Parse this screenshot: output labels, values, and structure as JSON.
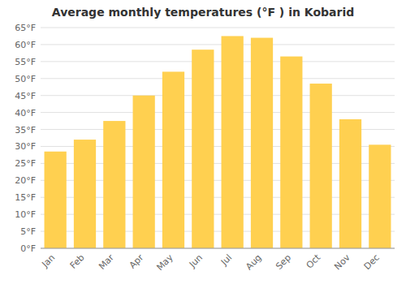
{
  "chart_data": {
    "type": "bar",
    "title": "Average monthly temperatures (°F ) in Kobarid",
    "categories": [
      "Jan",
      "Feb",
      "Mar",
      "Apr",
      "May",
      "Jun",
      "Jul",
      "Aug",
      "Sep",
      "Oct",
      "Nov",
      "Dec"
    ],
    "values": [
      28.5,
      32.0,
      37.5,
      45.0,
      52.0,
      58.5,
      62.5,
      62.0,
      56.5,
      48.5,
      38.0,
      30.5
    ],
    "color": "#FFD050",
    "ylim": [
      0,
      65
    ],
    "yticks": [
      {
        "value": 0,
        "label": "0°F"
      },
      {
        "value": 5,
        "label": "5°F"
      },
      {
        "value": 10,
        "label": "10°F"
      },
      {
        "value": 15,
        "label": "15°F"
      },
      {
        "value": 20,
        "label": "20°F"
      },
      {
        "value": 25,
        "label": "25°F"
      },
      {
        "value": 30,
        "label": "30°F"
      },
      {
        "value": 35,
        "label": "35°F"
      },
      {
        "value": 40,
        "label": "40°F"
      },
      {
        "value": 45,
        "label": "45°F"
      },
      {
        "value": 50,
        "label": "50°F"
      },
      {
        "value": 55,
        "label": "55°F"
      },
      {
        "value": 60,
        "label": "60°F"
      },
      {
        "value": 65,
        "label": "65°F"
      }
    ],
    "grid": true
  }
}
